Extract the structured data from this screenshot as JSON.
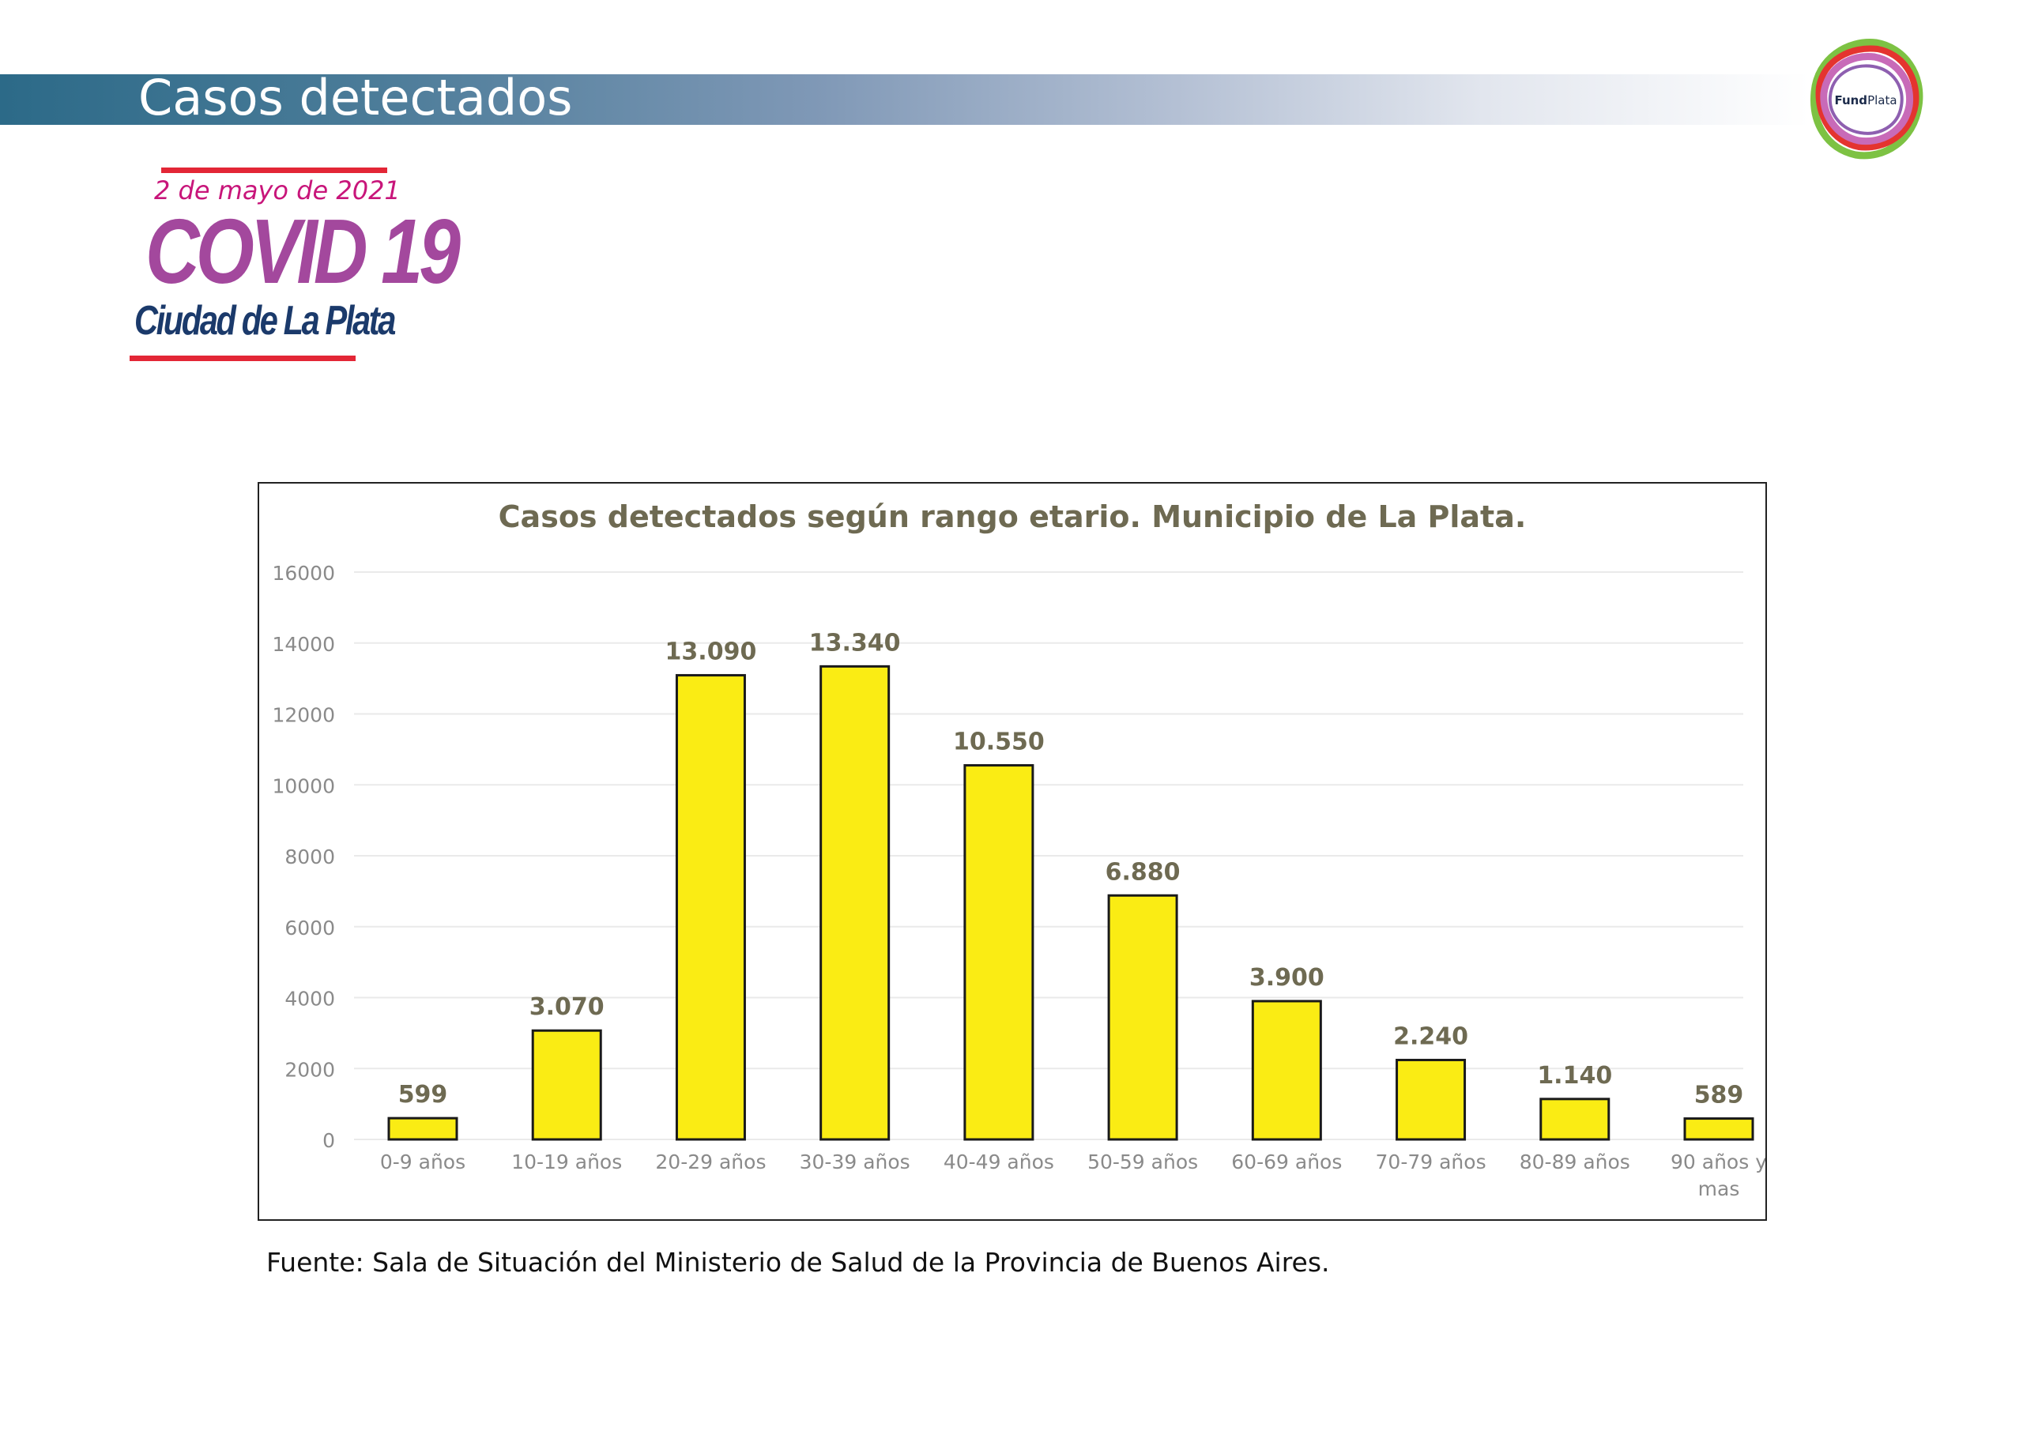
{
  "header": {
    "title": "Casos detectados"
  },
  "logo": {
    "name": "FundPlata",
    "name_bold": "Fund",
    "name_light": "Plata"
  },
  "badge": {
    "date": "2 de mayo de 2021",
    "title": "COVID 19",
    "subtitle": "Ciudad de La Plata",
    "colors": {
      "date": "#c8157a",
      "title": "#a3489d",
      "subtitle": "#1b3a6b",
      "rule": "#e32636"
    }
  },
  "chart_data": {
    "type": "bar",
    "title": "Casos detectados según rango etario. Municipio de La Plata.",
    "xlabel": "",
    "ylabel": "",
    "categories": [
      "0-9 años",
      "10-19 años",
      "20-29 años",
      "30-39 años",
      "40-49 años",
      "50-59 años",
      "60-69 años",
      "70-79 años",
      "80-89 años",
      "90 años y mas"
    ],
    "values": [
      599,
      3070,
      13090,
      13340,
      10550,
      6880,
      3900,
      2240,
      1140,
      589
    ],
    "data_labels": [
      "599",
      "3.070",
      "13.090",
      "13.340",
      "10.550",
      "6.880",
      "3.900",
      "2.240",
      "1.140",
      "589"
    ],
    "y_ticks": [
      0,
      2000,
      4000,
      6000,
      8000,
      10000,
      12000,
      14000,
      16000
    ],
    "ylim": [
      0,
      16000
    ],
    "grid": true,
    "legend": "none",
    "colors": {
      "bar": "#faec14",
      "bar_border": "#1a1a1a",
      "title": "#6e6a52",
      "labels": "#6e6a52",
      "ticks": "#8a8a8a",
      "grid": "#eaeaea"
    }
  },
  "source": "Fuente: Sala de Situación del Ministerio de Salud de la Provincia de Buenos Aires."
}
